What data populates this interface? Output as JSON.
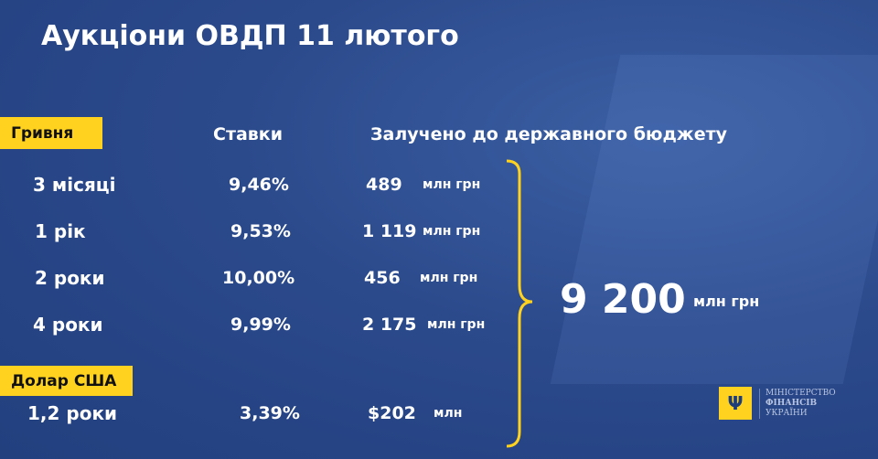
{
  "title": "Аукціони ОВДП 11 лютого",
  "sections": {
    "uah": "Гривня",
    "usd": "Долар США"
  },
  "headers": {
    "rates": "Ставки",
    "raised": "Залучено до державного бюджету"
  },
  "uah_rows": [
    {
      "term": "3 місяці",
      "rate": "9,46%",
      "amount": "489",
      "unit": "млн грн"
    },
    {
      "term": "1 рік",
      "rate": "9,53%",
      "amount": "1 119",
      "unit": "млн грн"
    },
    {
      "term": "2 роки",
      "rate": "10,00%",
      "amount": "456",
      "unit": "млн грн"
    },
    {
      "term": "4 роки",
      "rate": "9,99%",
      "amount": "2 175",
      "unit": "млн грн"
    }
  ],
  "usd_rows": [
    {
      "term": "1,2 роки",
      "rate": "3,39%",
      "amount": "$202",
      "unit": "млн"
    }
  ],
  "total": {
    "value": "9 200",
    "unit": "млн грн"
  },
  "logo": {
    "line1": "МІНІСТЕРСТВО",
    "line2": "ФІНАНСІВ",
    "line3": "УКРАЇНИ"
  },
  "colors": {
    "accent": "#FFD21F",
    "background": "#2b4a8c"
  }
}
